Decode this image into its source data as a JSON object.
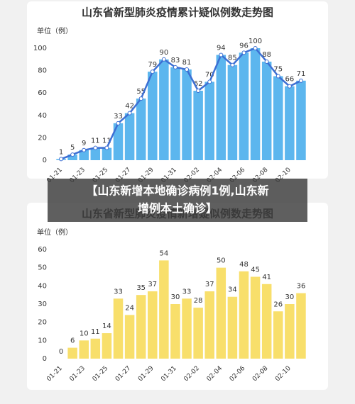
{
  "chart_data": [
    {
      "type": "bar",
      "title": "山东省新型肺炎疫情累计疑似例数走势图",
      "unit": "单位（例）",
      "categories": [
        "01-21",
        null,
        "01-23",
        null,
        "01-25",
        null,
        "01-27",
        null,
        "01-29",
        null,
        "01-31",
        null,
        "02-02",
        null,
        "02-04",
        null,
        "02-06",
        null,
        "02-08",
        null,
        "02-10",
        null
      ],
      "values": [
        1,
        5,
        9,
        11,
        11,
        33,
        42,
        55,
        79,
        90,
        83,
        81,
        62,
        70,
        94,
        85,
        96,
        100,
        88,
        75,
        66,
        71
      ],
      "color": "#5cb6ee",
      "line": true,
      "line_color": "#3d6fd3",
      "ylim": [
        0,
        100
      ],
      "yticks": [
        0,
        20,
        40,
        60,
        80,
        100
      ],
      "grid": false
    },
    {
      "type": "bar",
      "title": "山东省新型肺炎疫情新增疑似例数走势图",
      "unit": "单位（例）",
      "categories": [
        "01-21",
        null,
        "01-23",
        null,
        "01-25",
        null,
        "01-27",
        null,
        "01-29",
        null,
        "01-31",
        null,
        "02-02",
        null,
        "02-04",
        null,
        "02-06",
        null,
        "02-08",
        null,
        "02-10",
        null
      ],
      "values": [
        0,
        6,
        10,
        11,
        14,
        33,
        24,
        35,
        37,
        54,
        30,
        33,
        28,
        37,
        50,
        34,
        48,
        45,
        41,
        26,
        30,
        36
      ],
      "color": "#f8df6b",
      "line": false,
      "ylim": [
        0,
        60
      ],
      "yticks": [
        0,
        10,
        20,
        30,
        40,
        50,
        60
      ],
      "grid": false
    }
  ],
  "banner": {
    "lines": [
      "【山东新增本地确诊病例1例,山东新",
      "增例本土确诊】"
    ]
  }
}
